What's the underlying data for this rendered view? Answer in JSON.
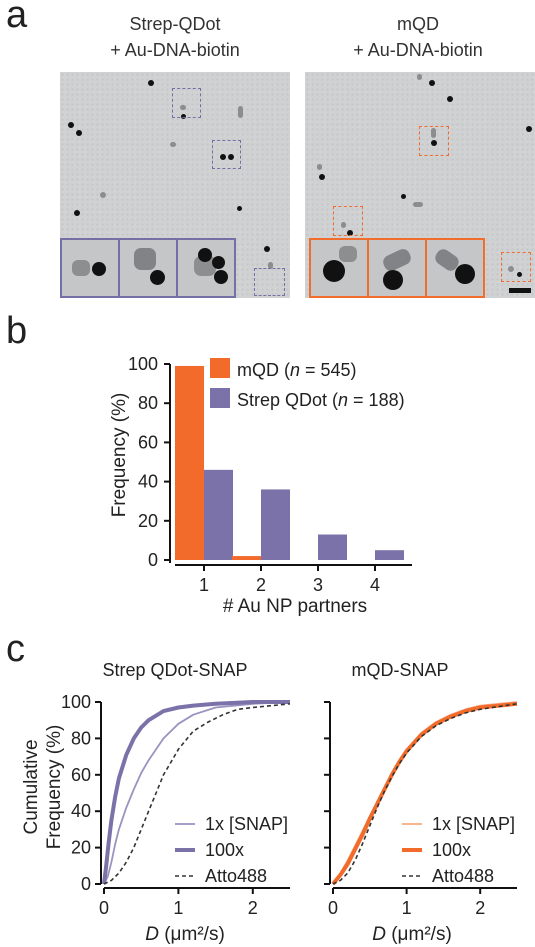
{
  "panel_a": {
    "letter": "a",
    "left_title_line1": "Strep-QDot",
    "left_title_line2": "+ Au-DNA-biotin",
    "right_title_line1": "mQD",
    "right_title_line2": "+ Au-DNA-biotin",
    "left_box_color": "#7470a6",
    "right_box_color": "#f06d2e"
  },
  "panel_b": {
    "letter": "b"
  },
  "panel_c": {
    "letter": "c",
    "left_title": "Strep QDot-SNAP",
    "right_title": "mQD-SNAP"
  },
  "colors": {
    "mqd": "#f26b2a",
    "strep": "#7a72a8",
    "strep_light": "#9a93c0",
    "mqd_light": "#f7a882",
    "atto": "#333333",
    "axis": "#111111"
  },
  "chart_data": [
    {
      "id": "b",
      "type": "bar",
      "categories": [
        "1",
        "2",
        "3",
        "4"
      ],
      "series": [
        {
          "name": "mQD (n = 545)",
          "legend_main": "mQD (",
          "legend_italic": "n",
          "legend_rest": " = 545)",
          "values": [
            99,
            2,
            0,
            0
          ]
        },
        {
          "name": "Strep QDot (n = 188)",
          "legend_main": "Strep QDot (",
          "legend_italic": "n",
          "legend_rest": " = 188)",
          "values": [
            46,
            36,
            13,
            5
          ]
        }
      ],
      "xlabel": "# Au NP partners",
      "ylabel": "Frequency (%)",
      "ylim": [
        0,
        100
      ],
      "yticks": [
        "0",
        "20",
        "40",
        "60",
        "80",
        "100"
      ],
      "legend": "top-right"
    },
    {
      "id": "c-left",
      "type": "line",
      "title": "Strep QDot-SNAP",
      "ylabel_line1": "Cumulative",
      "ylabel_line2": "Frequency (%)",
      "xlabel_italic": "D",
      "xlabel_rest": " (μm²/s)",
      "xlim": [
        0,
        2.5
      ],
      "ylim": [
        0,
        100
      ],
      "xticks": [
        "0",
        "1",
        "2"
      ],
      "yticks": [
        "0",
        "20",
        "40",
        "60",
        "80",
        "100"
      ],
      "legend": "bottom-right",
      "series": [
        {
          "name": "1x [SNAP]",
          "style": "thin",
          "x": [
            0,
            0.05,
            0.1,
            0.15,
            0.2,
            0.3,
            0.4,
            0.5,
            0.6,
            0.7,
            0.8,
            1.0,
            1.2,
            1.5,
            2.0,
            2.5
          ],
          "y": [
            0,
            4,
            12,
            22,
            30,
            42,
            52,
            61,
            68,
            74,
            80,
            88,
            93,
            97,
            99,
            100
          ]
        },
        {
          "name": "100x",
          "style": "thick",
          "x": [
            0,
            0.03,
            0.06,
            0.1,
            0.15,
            0.2,
            0.3,
            0.4,
            0.5,
            0.6,
            0.8,
            1.0,
            1.2,
            1.5,
            2.0,
            2.5
          ],
          "y": [
            0,
            10,
            22,
            35,
            48,
            58,
            71,
            80,
            86,
            90,
            95,
            97,
            98,
            99,
            100,
            100
          ]
        },
        {
          "name": "Atto488",
          "style": "dashed",
          "x": [
            0,
            0.1,
            0.2,
            0.3,
            0.4,
            0.5,
            0.6,
            0.7,
            0.8,
            0.9,
            1.0,
            1.2,
            1.4,
            1.6,
            1.8,
            2.0,
            2.5
          ],
          "y": [
            0,
            2,
            6,
            12,
            20,
            30,
            40,
            50,
            60,
            67,
            74,
            84,
            89,
            93,
            96,
            97,
            99
          ]
        }
      ]
    },
    {
      "id": "c-right",
      "type": "line",
      "title": "mQD-SNAP",
      "xlabel_italic": "D",
      "xlabel_rest": " (μm²/s)",
      "xlim": [
        0,
        2.5
      ],
      "ylim": [
        0,
        100
      ],
      "xticks": [
        "0",
        "1",
        "2"
      ],
      "legend": "bottom-right",
      "series": [
        {
          "name": "1x [SNAP]",
          "style": "thin",
          "x": [
            0,
            0.1,
            0.2,
            0.3,
            0.4,
            0.5,
            0.6,
            0.7,
            0.8,
            0.9,
            1.0,
            1.2,
            1.4,
            1.6,
            1.8,
            2.0,
            2.5
          ],
          "y": [
            0,
            6,
            13,
            21,
            29,
            37,
            45,
            53,
            61,
            68,
            74,
            83,
            89,
            93,
            96,
            98,
            100
          ]
        },
        {
          "name": "100x",
          "style": "thick",
          "x": [
            0,
            0.1,
            0.2,
            0.3,
            0.4,
            0.5,
            0.6,
            0.7,
            0.8,
            0.9,
            1.0,
            1.2,
            1.4,
            1.6,
            1.8,
            2.0,
            2.5
          ],
          "y": [
            0,
            5,
            11,
            19,
            27,
            36,
            44,
            52,
            60,
            67,
            73,
            82,
            88,
            92,
            95,
            97,
            99
          ]
        },
        {
          "name": "Atto488",
          "style": "dashed",
          "x": [
            0,
            0.1,
            0.2,
            0.3,
            0.4,
            0.5,
            0.6,
            0.7,
            0.8,
            0.9,
            1.0,
            1.2,
            1.4,
            1.6,
            1.8,
            2.0,
            2.5
          ],
          "y": [
            0,
            2,
            6,
            13,
            22,
            32,
            42,
            51,
            59,
            66,
            72,
            81,
            87,
            91,
            94,
            96,
            99
          ]
        }
      ]
    }
  ]
}
